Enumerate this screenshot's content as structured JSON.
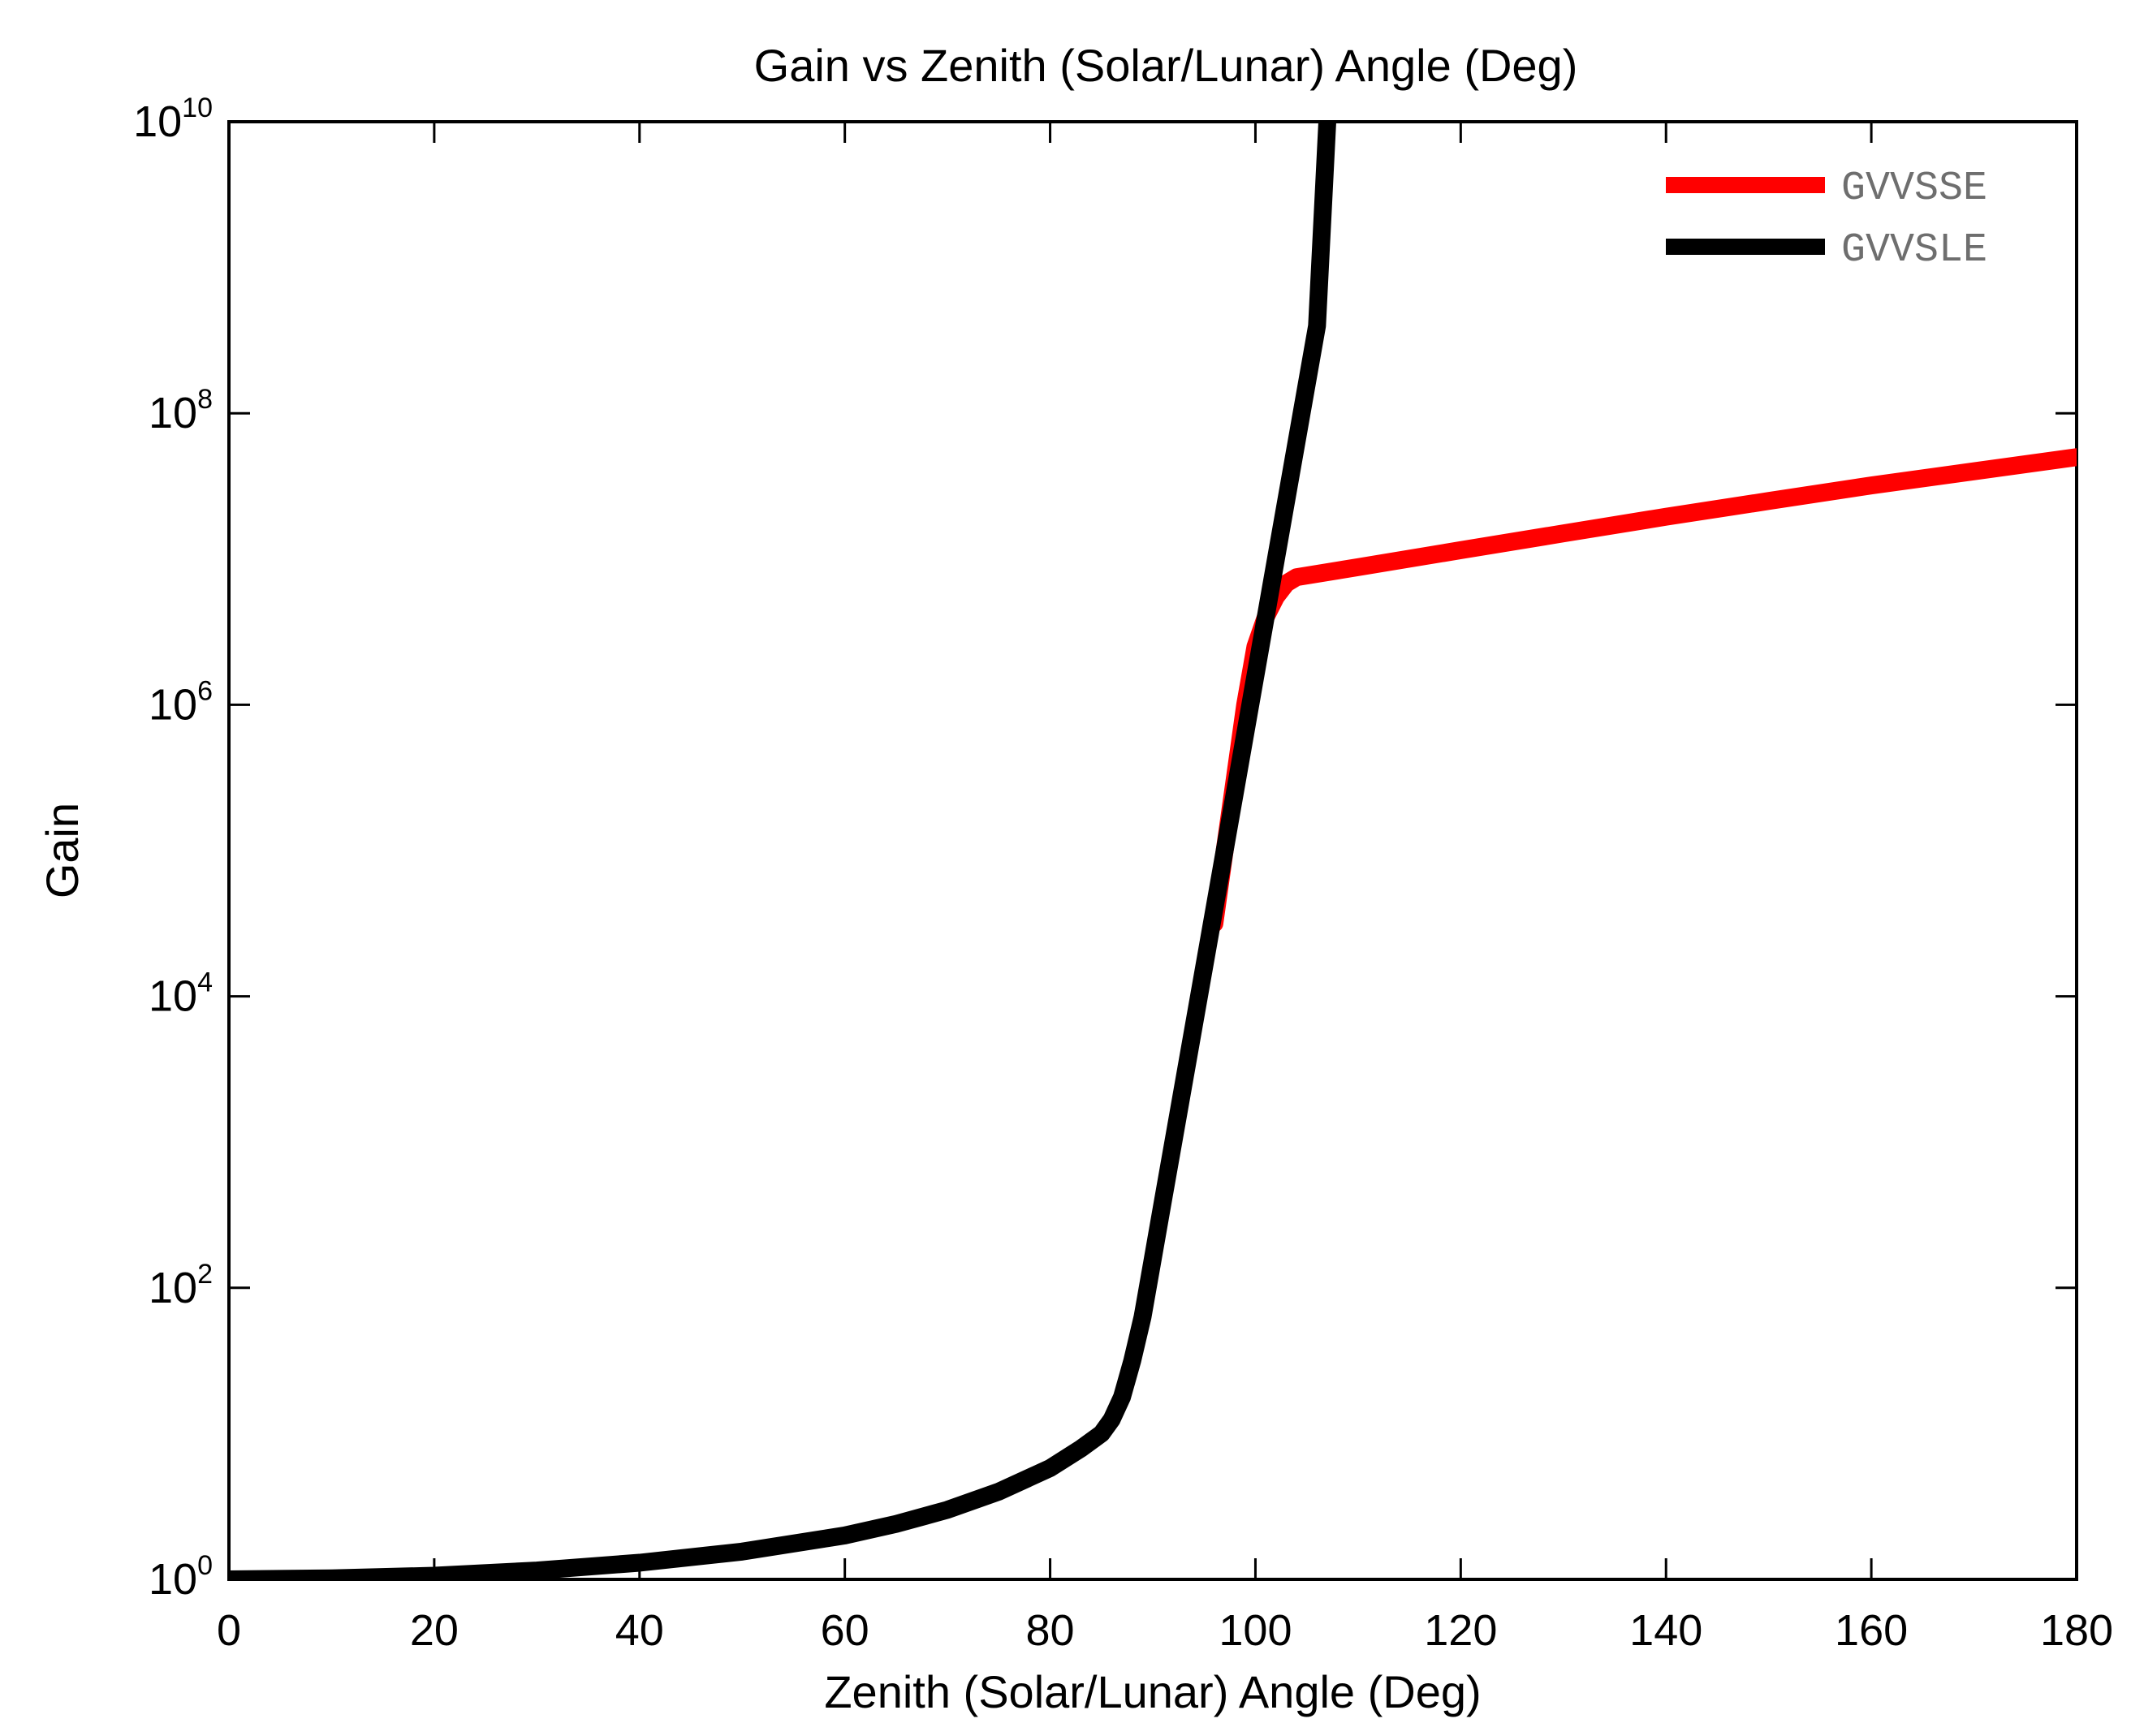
{
  "chart_data": {
    "type": "line",
    "title": "Gain vs Zenith (Solar/Lunar) Angle (Deg)",
    "xlabel": "Zenith (Solar/Lunar) Angle (Deg)",
    "ylabel": "Gain",
    "x_scale": "linear",
    "y_scale": "log",
    "xlim": [
      0,
      180
    ],
    "ylim": [
      1,
      10000000000
    ],
    "x_ticks": [
      0,
      20,
      40,
      60,
      80,
      100,
      120,
      140,
      160,
      180
    ],
    "x_tick_labels": [
      "0",
      "20",
      "40",
      "60",
      "80",
      "100",
      "120",
      "140",
      "160",
      "180"
    ],
    "y_ticks": [
      1,
      100,
      10000,
      1000000,
      100000000,
      10000000000
    ],
    "y_tick_labels": [
      {
        "base": "10",
        "exp": "0"
      },
      {
        "base": "10",
        "exp": "2"
      },
      {
        "base": "10",
        "exp": "4"
      },
      {
        "base": "10",
        "exp": "6"
      },
      {
        "base": "10",
        "exp": "8"
      },
      {
        "base": "10",
        "exp": "10"
      }
    ],
    "grid": false,
    "legend_position": "top-right",
    "series": [
      {
        "name": "GVVSSE",
        "color": "#ff0000",
        "x": [
          96,
          98,
          99,
          100,
          101,
          102,
          103,
          104,
          110,
          120,
          130,
          140,
          150,
          160,
          170,
          180
        ],
        "y": [
          31600,
          316000,
          1000000,
          2500000,
          4000000,
          5500000,
          6800000,
          7500000,
          8800000,
          11500000,
          15000000,
          19500000,
          25000000,
          32000000,
          40000000,
          50000000
        ]
      },
      {
        "name": "GVVSLE",
        "color": "#000000",
        "x": [
          0,
          10,
          20,
          30,
          40,
          50,
          60,
          65,
          70,
          75,
          80,
          83,
          85,
          86,
          87,
          88,
          89,
          90,
          91,
          92,
          94,
          96,
          98,
          100,
          102,
          104,
          106,
          107
        ],
        "y": [
          1.0,
          1.015,
          1.06,
          1.15,
          1.3,
          1.55,
          2.0,
          2.4,
          3.0,
          4.0,
          5.8,
          7.9,
          10.0,
          12.5,
          17.8,
          31.6,
          63.1,
          158,
          398,
          1000,
          6310,
          39800,
          251000,
          1580000,
          10000000,
          63100000,
          398000000,
          10000000000
        ]
      }
    ]
  }
}
